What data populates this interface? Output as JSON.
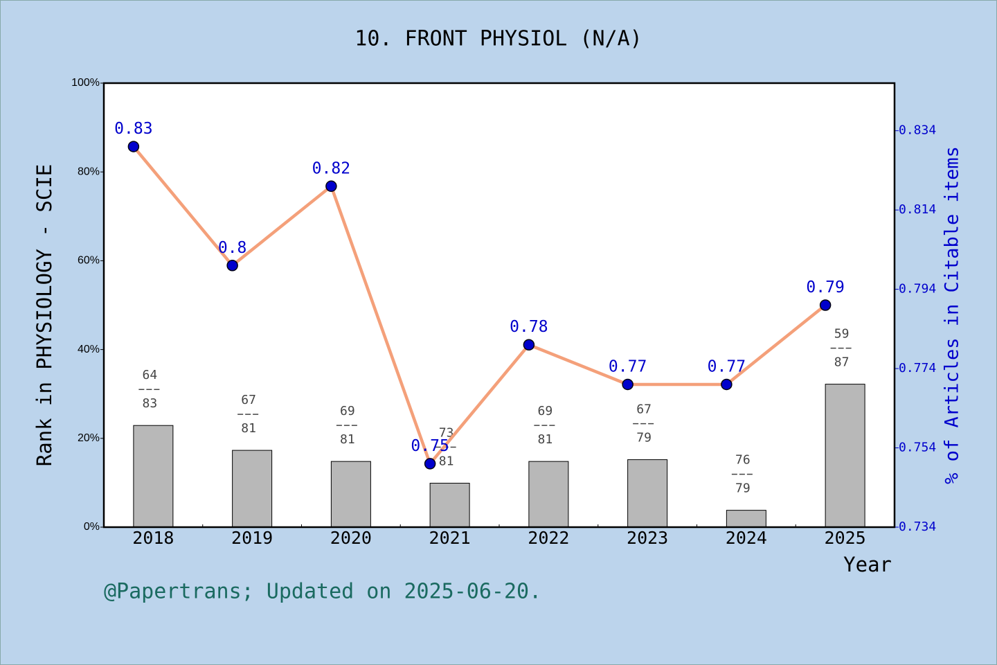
{
  "chart_data": {
    "type": "bar",
    "title": "10. FRONT PHYSIOL (N/A)",
    "x_label": "Year",
    "y_label": "Rank in PHYSIOLOGY - SCIE",
    "y2_label": "% of Articles in Citable items",
    "footer": "@Papertrans; Updated on 2025-06-20.",
    "categories": [
      "2018",
      "2019",
      "2020",
      "2021",
      "2022",
      "2023",
      "2024",
      "2025"
    ],
    "ylim": [
      0,
      100
    ],
    "yticks": [
      {
        "value": 0,
        "label": "0%"
      },
      {
        "value": 20,
        "label": "20%"
      },
      {
        "value": 40,
        "label": "40%"
      },
      {
        "value": 60,
        "label": "60%"
      },
      {
        "value": 80,
        "label": "80%"
      },
      {
        "value": 100,
        "label": "100%"
      }
    ],
    "y2lim": [
      0.734,
      0.846
    ],
    "y2ticks": [
      0.734,
      0.754,
      0.774,
      0.794,
      0.814,
      0.834
    ],
    "series": [
      {
        "type": "bar",
        "color": "#b8b8b8",
        "values": [
          22.9,
          17.3,
          14.8,
          9.9,
          14.8,
          15.2,
          3.8,
          32.2
        ],
        "ranks": [
          64,
          67,
          69,
          73,
          69,
          67,
          76,
          59
        ],
        "totals": [
          83,
          81,
          81,
          81,
          81,
          79,
          79,
          87
        ]
      },
      {
        "type": "line",
        "axis": "y2",
        "color": "#f4a07a",
        "marker_color": "#0000cc",
        "values": [
          0.83,
          0.8,
          0.82,
          0.75,
          0.78,
          0.77,
          0.77,
          0.79
        ]
      }
    ]
  }
}
